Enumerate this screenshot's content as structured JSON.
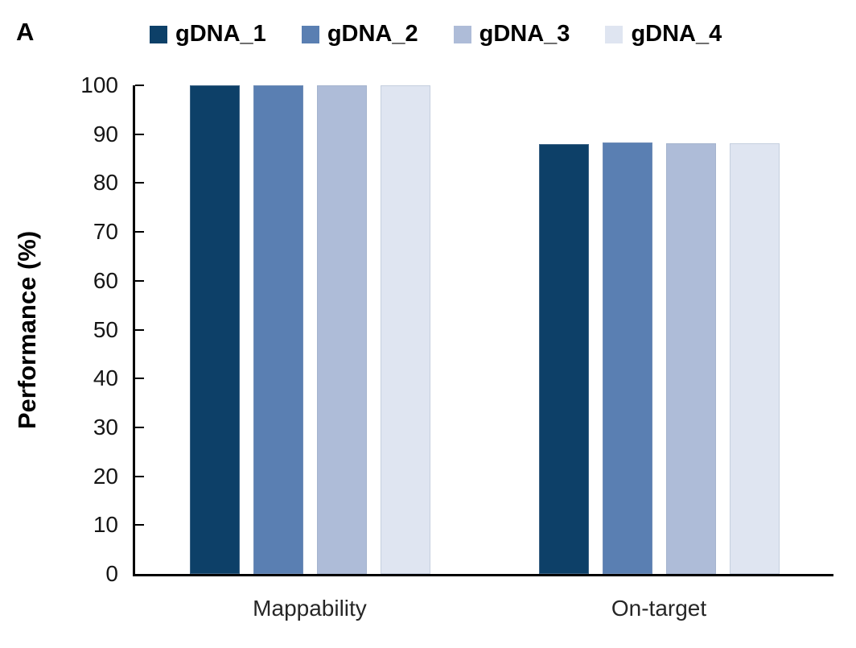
{
  "panel_label": "A",
  "chart_data": {
    "type": "bar",
    "title": "",
    "categories": [
      "Mappability",
      "On-target"
    ],
    "series": [
      {
        "name": "gDNA_1",
        "color": "#0d4068",
        "values": [
          100,
          88.0
        ]
      },
      {
        "name": "gDNA_2",
        "color": "#5a7fb2",
        "values": [
          100,
          88.3
        ]
      },
      {
        "name": "gDNA_3",
        "color": "#aebcd8",
        "values": [
          100,
          88.2
        ]
      },
      {
        "name": "gDNA_4",
        "color": "#dfe5f1",
        "values": [
          100,
          88.2
        ]
      }
    ],
    "xlabel": "",
    "ylabel": "Performance (%)",
    "ylim": [
      0,
      100
    ],
    "yticks": [
      0,
      10,
      20,
      30,
      40,
      50,
      60,
      70,
      80,
      90,
      100
    ],
    "grid": false,
    "legend_position": "top",
    "axis_color": "#000000",
    "tick_label_color": "#161616"
  }
}
